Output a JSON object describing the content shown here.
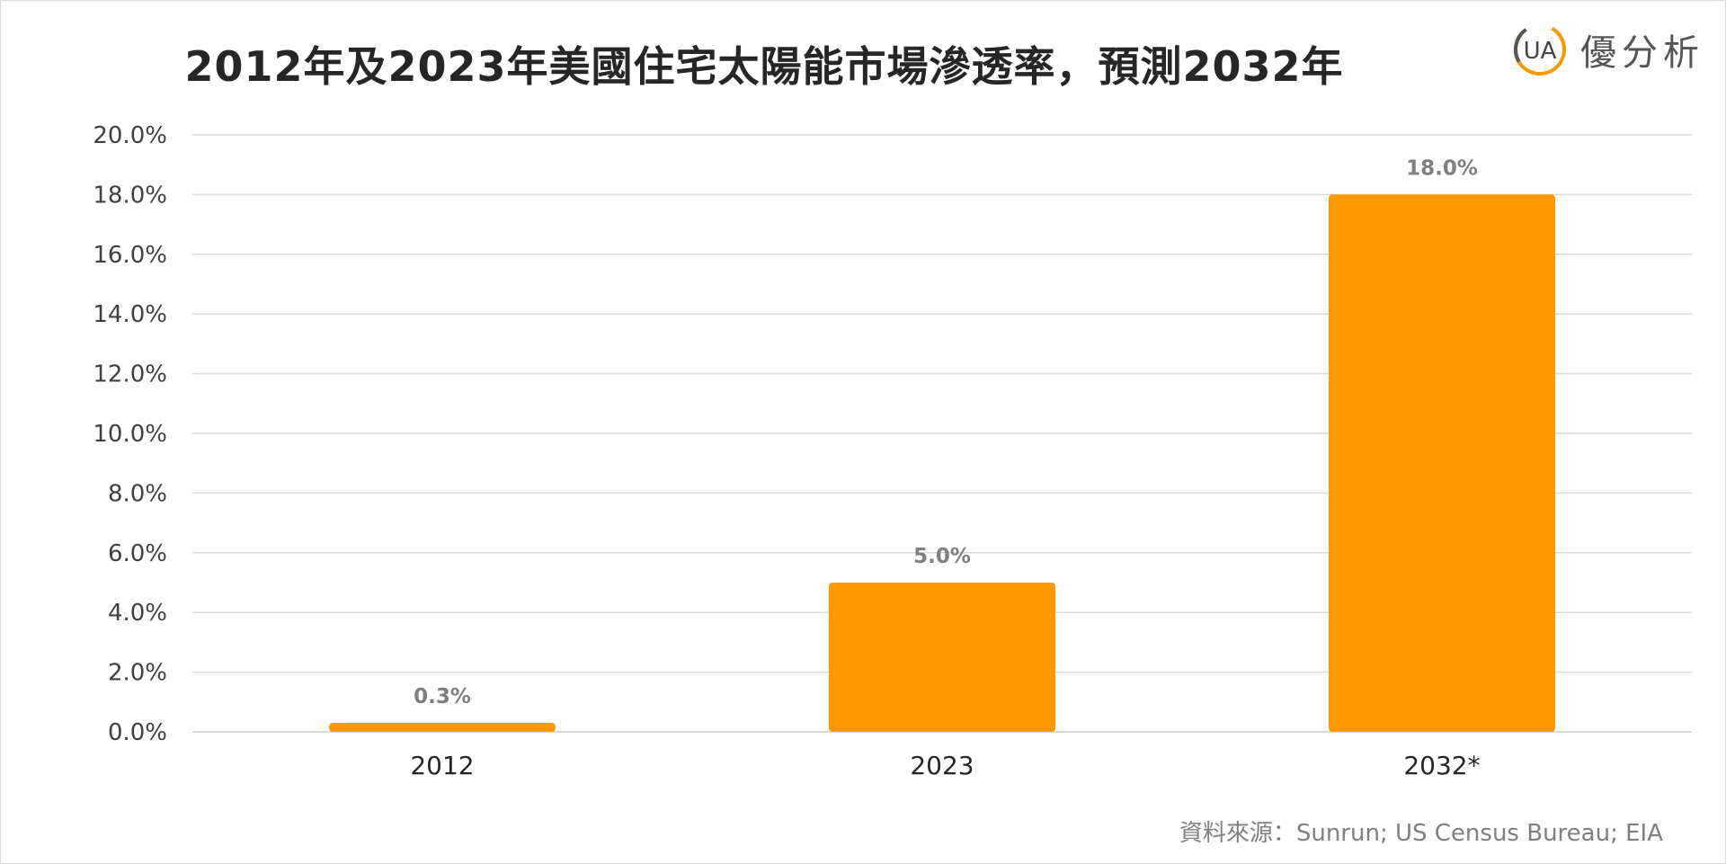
{
  "title": "2012年及2023年美國住宅太陽能市場滲透率，預測2032年",
  "logo": {
    "mark_text": "UA",
    "name": "優分析",
    "ring_color": "#f59b00",
    "text_color": "#555555"
  },
  "source": "資料來源：Sunrun; US Census Bureau; EIA",
  "chart_data": {
    "type": "bar",
    "categories": [
      "2012",
      "2023",
      "2032*"
    ],
    "values": [
      0.3,
      5.0,
      18.0
    ],
    "value_labels": [
      "0.3%",
      "5.0%",
      "18.0%"
    ],
    "ylim": [
      0,
      20
    ],
    "ytick_step": 2,
    "ytick_labels": [
      "0.0%",
      "2.0%",
      "4.0%",
      "6.0%",
      "8.0%",
      "10.0%",
      "12.0%",
      "14.0%",
      "16.0%",
      "18.0%",
      "20.0%"
    ],
    "grid": true,
    "legend": "none",
    "bar_color": "#ff9900",
    "grid_color": "#d9d9d9"
  }
}
